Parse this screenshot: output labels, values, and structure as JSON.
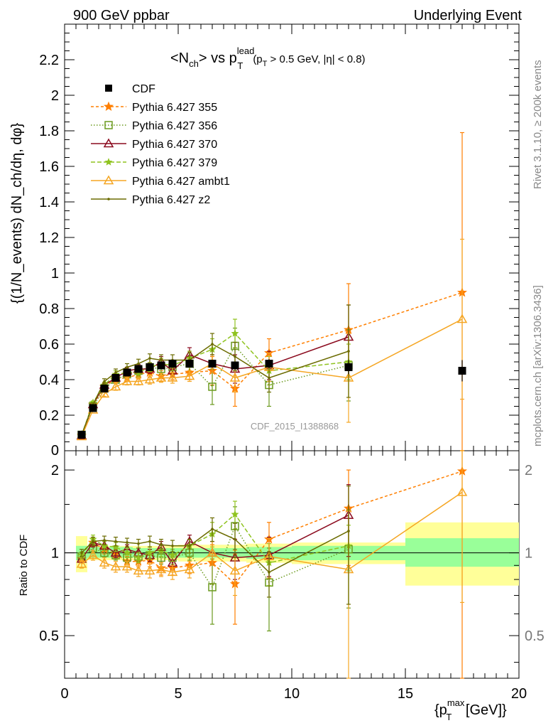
{
  "header": {
    "left": "900 GeV ppbar",
    "right": "Underlying Event"
  },
  "side_labels": {
    "rivet": "Rivet 3.1.10, ≥ 200k events",
    "mcplots": "mcplots.cern.ch [arXiv:1306.3436]"
  },
  "watermark": "CDF_2015_I1388868",
  "chart_data": [
    {
      "type": "scatter",
      "title_main": "<N",
      "title_sub": "ch",
      "title_mid": "> vs p",
      "title_sup": "lead",
      "title_sub2": "T",
      "title_cut": "(p",
      "title_cut_sub": "T",
      "title_cut_rest": " > 0.5 GeV, |η| < 0.8)",
      "ylabel": "{(1/N_events) dN_ch/dη, dφ}",
      "xlim": [
        0,
        20
      ],
      "ylim": [
        0,
        2.4
      ],
      "yticks": [
        0.2,
        0.4,
        0.6,
        0.8,
        1,
        1.2,
        1.4,
        1.6,
        1.8,
        2,
        2.2
      ],
      "ytick_labels": [
        "0.2",
        "0.4",
        "0.6",
        "0.8",
        "1",
        "1.2",
        "1.4",
        "1.6",
        "1.8",
        "2",
        "2.2"
      ],
      "bottom_tick_label": "0",
      "legend_position": "top-left",
      "data": {
        "name": "CDF",
        "color": "#000000",
        "x": [
          0.75,
          1.25,
          1.75,
          2.25,
          2.75,
          3.25,
          3.75,
          4.25,
          4.75,
          5.5,
          6.5,
          7.5,
          9.0,
          12.5,
          17.5
        ],
        "y": [
          0.09,
          0.24,
          0.35,
          0.41,
          0.44,
          0.46,
          0.47,
          0.48,
          0.49,
          0.49,
          0.49,
          0.48,
          0.49,
          0.47,
          0.45
        ],
        "yerr": [
          0.005,
          0.01,
          0.01,
          0.01,
          0.01,
          0.01,
          0.012,
          0.012,
          0.015,
          0.015,
          0.02,
          0.02,
          0.025,
          0.04,
          0.06
        ]
      },
      "series": [
        {
          "name": "Pythia 6.427 355",
          "color": "#ff7f00",
          "dash": "4,3",
          "marker": "star",
          "x": [
            0.75,
            1.25,
            1.75,
            2.25,
            2.75,
            3.25,
            3.75,
            4.25,
            4.75,
            5.5,
            6.5,
            7.5,
            9.0,
            12.5,
            17.5
          ],
          "y": [
            0.085,
            0.26,
            0.36,
            0.405,
            0.41,
            0.43,
            0.44,
            0.42,
            0.43,
            0.44,
            0.45,
            0.35,
            0.55,
            0.68,
            0.89
          ],
          "yerr": [
            0.005,
            0.01,
            0.015,
            0.02,
            0.02,
            0.025,
            0.025,
            0.03,
            0.03,
            0.04,
            0.08,
            0.1,
            0.08,
            0.26,
            0.9
          ]
        },
        {
          "name": "Pythia 6.427 356",
          "color": "#6b9a1e",
          "dash": "1.5,2.5",
          "marker": "square",
          "x": [
            0.75,
            1.25,
            1.75,
            2.25,
            2.75,
            3.25,
            3.75,
            4.25,
            4.75,
            5.5,
            6.5,
            7.5,
            9.0,
            12.5
          ],
          "y": [
            0.09,
            0.25,
            0.35,
            0.4,
            0.43,
            0.45,
            0.47,
            0.46,
            0.47,
            0.49,
            0.36,
            0.59,
            0.37,
            0.48
          ],
          "yerr": [
            0.005,
            0.01,
            0.015,
            0.02,
            0.02,
            0.025,
            0.025,
            0.03,
            0.03,
            0.04,
            0.1,
            0.1,
            0.12,
            0.2
          ]
        },
        {
          "name": "Pythia 6.427 370",
          "color": "#8b0a1e",
          "dash": "",
          "marker": "triangle",
          "x": [
            0.75,
            1.25,
            1.75,
            2.25,
            2.75,
            3.25,
            3.75,
            4.25,
            4.75,
            5.5,
            6.5,
            7.5,
            9.0,
            12.5
          ],
          "y": [
            0.085,
            0.26,
            0.37,
            0.41,
            0.45,
            0.46,
            0.46,
            0.5,
            0.45,
            0.54,
            0.49,
            0.46,
            0.48,
            0.64
          ],
          "yerr": [
            0.005,
            0.01,
            0.015,
            0.02,
            0.02,
            0.025,
            0.025,
            0.03,
            0.03,
            0.04,
            0.05,
            0.08,
            0.08,
            0.18
          ]
        },
        {
          "name": "Pythia 6.427 379",
          "color": "#8fc31f",
          "dash": "6,3",
          "marker": "smallstar",
          "x": [
            0.75,
            1.25,
            1.75,
            2.25,
            2.75,
            3.25,
            3.75,
            4.25,
            4.75,
            5.5,
            6.5,
            7.5,
            9.0,
            12.5
          ],
          "y": [
            0.088,
            0.27,
            0.37,
            0.43,
            0.44,
            0.44,
            0.47,
            0.49,
            0.48,
            0.52,
            0.57,
            0.66,
            0.45,
            0.5
          ],
          "yerr": [
            0.005,
            0.01,
            0.015,
            0.02,
            0.02,
            0.025,
            0.025,
            0.03,
            0.03,
            0.04,
            0.06,
            0.08,
            0.08,
            0.1
          ]
        },
        {
          "name": "Pythia 6.427 ambt1",
          "color": "#f5a623",
          "dash": "",
          "marker": "triangle",
          "x": [
            0.75,
            1.25,
            1.75,
            2.25,
            2.75,
            3.25,
            3.75,
            4.25,
            4.75,
            5.5,
            6.5,
            7.5,
            9.0,
            12.5,
            17.5
          ],
          "y": [
            0.08,
            0.23,
            0.32,
            0.36,
            0.39,
            0.39,
            0.4,
            0.41,
            0.41,
            0.42,
            0.49,
            0.41,
            0.47,
            0.41,
            0.74
          ],
          "yerr": [
            0.005,
            0.01,
            0.015,
            0.02,
            0.02,
            0.02,
            0.025,
            0.025,
            0.03,
            0.03,
            0.05,
            0.08,
            0.08,
            0.25,
            0.45
          ]
        },
        {
          "name": "Pythia 6.427 z2",
          "color": "#6b6b00",
          "dash": "",
          "marker": "dot",
          "x": [
            0.75,
            1.25,
            1.75,
            2.25,
            2.75,
            3.25,
            3.75,
            4.25,
            4.75,
            5.5,
            6.5,
            7.5,
            9.0,
            12.5
          ],
          "y": [
            0.09,
            0.26,
            0.39,
            0.44,
            0.47,
            0.49,
            0.52,
            0.51,
            0.51,
            0.51,
            0.6,
            0.53,
            0.41,
            0.56
          ],
          "yerr": [
            0.005,
            0.01,
            0.015,
            0.02,
            0.02,
            0.025,
            0.025,
            0.03,
            0.03,
            0.04,
            0.06,
            0.08,
            0.08,
            0.26
          ]
        }
      ]
    },
    {
      "type": "scatter",
      "ylabel": "Ratio to CDF",
      "xlabel_main": "{p",
      "xlabel_sup": "max",
      "xlabel_sub": "T",
      "xlabel_rest": " [GeV]}",
      "xlim": [
        0,
        20
      ],
      "ylim": [
        0.35,
        2.35
      ],
      "ylog": true,
      "yticks": [
        0.5,
        1,
        2
      ],
      "ytick_labels": [
        "0.5",
        "1",
        "2"
      ],
      "xticks": [
        0,
        5,
        10,
        15,
        20
      ],
      "xtick_labels": [
        "0",
        "5",
        "10",
        "15",
        "20"
      ],
      "bands": [
        {
          "x0": 0.5,
          "x1": 1.0,
          "inner": [
            0.94,
            1.06
          ],
          "outer": [
            0.85,
            1.15
          ]
        },
        {
          "x0": 1.0,
          "x1": 3.0,
          "inner": [
            0.96,
            1.05
          ],
          "outer": [
            0.94,
            1.06
          ]
        },
        {
          "x0": 3.0,
          "x1": 5.0,
          "inner": [
            0.96,
            1.04
          ],
          "outer": [
            0.94,
            1.06
          ]
        },
        {
          "x0": 5.0,
          "x1": 8.0,
          "inner": [
            0.96,
            1.04
          ],
          "outer": [
            0.93,
            1.07
          ]
        },
        {
          "x0": 8.0,
          "x1": 10.0,
          "inner": [
            0.95,
            1.05
          ],
          "outer": [
            0.92,
            1.08
          ]
        },
        {
          "x0": 10.0,
          "x1": 15.0,
          "inner": [
            0.94,
            1.06
          ],
          "outer": [
            0.91,
            1.09
          ]
        },
        {
          "x0": 15.0,
          "x1": 20.0,
          "inner": [
            0.89,
            1.13
          ],
          "outer": [
            0.76,
            1.29
          ]
        }
      ],
      "series": [
        {
          "name": "Pythia 6.427 355",
          "color": "#ff7f00",
          "dash": "4,3",
          "marker": "star",
          "x": [
            0.75,
            1.25,
            1.75,
            2.25,
            2.75,
            3.25,
            3.75,
            4.25,
            4.75,
            5.5,
            6.5,
            7.5,
            9.0,
            12.5,
            17.5
          ],
          "y": [
            0.95,
            1.09,
            1.03,
            0.99,
            0.93,
            0.93,
            0.94,
            0.88,
            0.88,
            0.9,
            0.92,
            0.77,
            1.12,
            1.45,
            1.98
          ],
          "yerr": [
            0.03,
            0.04,
            0.04,
            0.04,
            0.04,
            0.04,
            0.05,
            0.05,
            0.05,
            0.06,
            0.15,
            0.22,
            0.17,
            0.55,
            2.0
          ]
        },
        {
          "name": "Pythia 6.427 356",
          "color": "#6b9a1e",
          "dash": "1.5,2.5",
          "marker": "square",
          "x": [
            0.75,
            1.25,
            1.75,
            2.25,
            2.75,
            3.25,
            3.75,
            4.25,
            4.75,
            5.5,
            6.5,
            7.5,
            9.0,
            12.5
          ],
          "y": [
            0.97,
            1.04,
            1.0,
            0.98,
            0.96,
            0.97,
            0.98,
            0.96,
            0.96,
            1.0,
            0.75,
            1.25,
            0.78,
            1.03
          ],
          "yerr": [
            0.03,
            0.04,
            0.04,
            0.04,
            0.04,
            0.04,
            0.05,
            0.05,
            0.05,
            0.06,
            0.2,
            0.22,
            0.26,
            0.4
          ]
        },
        {
          "name": "Pythia 6.427 370",
          "color": "#8b0a1e",
          "dash": "",
          "marker": "triangle",
          "x": [
            0.75,
            1.25,
            1.75,
            2.25,
            2.75,
            3.25,
            3.75,
            4.25,
            4.75,
            5.5,
            6.5,
            7.5,
            9.0,
            12.5
          ],
          "y": [
            0.95,
            1.09,
            1.06,
            1.0,
            1.03,
            1.0,
            0.98,
            1.05,
            0.92,
            1.1,
            1.0,
            0.96,
            0.98,
            1.37
          ],
          "yerr": [
            0.03,
            0.04,
            0.04,
            0.04,
            0.04,
            0.04,
            0.05,
            0.05,
            0.05,
            0.06,
            0.1,
            0.16,
            0.16,
            0.4
          ]
        },
        {
          "name": "Pythia 6.427 379",
          "color": "#8fc31f",
          "dash": "6,3",
          "marker": "smallstar",
          "x": [
            0.75,
            1.25,
            1.75,
            2.25,
            2.75,
            3.25,
            3.75,
            4.25,
            4.75,
            5.5,
            6.5,
            7.5,
            9.0,
            12.5
          ],
          "y": [
            0.98,
            1.12,
            1.06,
            1.05,
            1.0,
            0.96,
            1.0,
            1.02,
            0.98,
            1.06,
            1.17,
            1.38,
            0.92,
            1.06
          ],
          "yerr": [
            0.03,
            0.04,
            0.04,
            0.04,
            0.04,
            0.04,
            0.05,
            0.05,
            0.05,
            0.06,
            0.12,
            0.16,
            0.16,
            0.2
          ]
        },
        {
          "name": "Pythia 6.427 ambt1",
          "color": "#f5a623",
          "dash": "",
          "marker": "triangle",
          "x": [
            0.75,
            1.25,
            1.75,
            2.25,
            2.75,
            3.25,
            3.75,
            4.25,
            4.75,
            5.5,
            6.5,
            7.5,
            9.0,
            12.5,
            17.5
          ],
          "y": [
            0.91,
            0.98,
            0.92,
            0.89,
            0.89,
            0.86,
            0.86,
            0.87,
            0.85,
            0.87,
            1.0,
            0.86,
            0.97,
            0.87,
            1.66
          ],
          "yerr": [
            0.03,
            0.04,
            0.04,
            0.04,
            0.04,
            0.04,
            0.05,
            0.05,
            0.05,
            0.06,
            0.1,
            0.16,
            0.16,
            0.55,
            1.0
          ]
        },
        {
          "name": "Pythia 6.427 z2",
          "color": "#6b6b00",
          "dash": "",
          "marker": "dot",
          "x": [
            0.75,
            1.25,
            1.75,
            2.25,
            2.75,
            3.25,
            3.75,
            4.25,
            4.75,
            5.5,
            6.5,
            7.5,
            9.0,
            12.5
          ],
          "y": [
            1.0,
            1.1,
            1.11,
            1.1,
            1.09,
            1.08,
            1.1,
            1.07,
            1.06,
            1.06,
            1.22,
            1.12,
            0.85,
            1.2
          ],
          "yerr": [
            0.03,
            0.04,
            0.04,
            0.04,
            0.04,
            0.04,
            0.05,
            0.05,
            0.05,
            0.06,
            0.12,
            0.16,
            0.16,
            0.55
          ]
        }
      ]
    }
  ]
}
